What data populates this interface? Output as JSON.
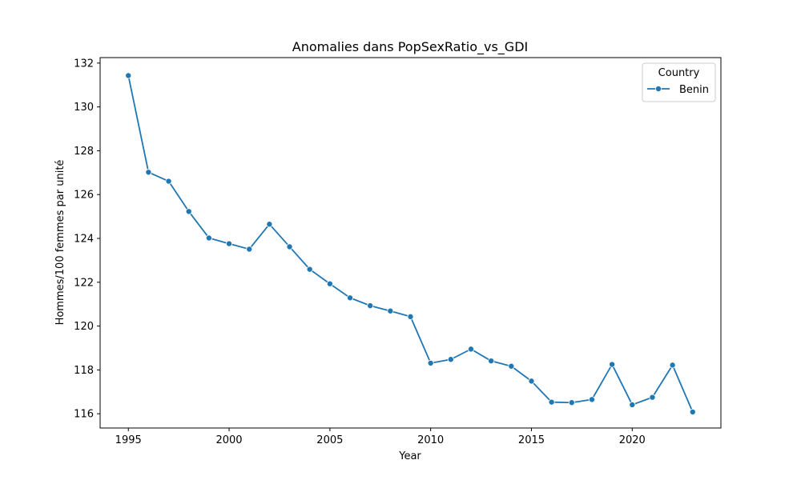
{
  "chart_data": {
    "type": "line",
    "title": "Anomalies dans PopSexRatio_vs_GDI",
    "xlabel": "Year",
    "ylabel": "Hommes/100 femmes par unité",
    "xlim": [
      1993.6,
      2024.4
    ],
    "ylim": [
      115.35,
      132.25
    ],
    "x_ticks": [
      1995,
      2000,
      2005,
      2010,
      2015,
      2020
    ],
    "y_ticks": [
      116,
      118,
      120,
      122,
      124,
      126,
      128,
      130,
      132
    ],
    "grid": false,
    "legend": {
      "title": "Country",
      "placement": "top-right"
    },
    "series": [
      {
        "name": "Benin",
        "color": "#1f77b4",
        "marker": "circle",
        "x": [
          1995,
          1996,
          1997,
          1998,
          1999,
          2000,
          2001,
          2002,
          2003,
          2004,
          2005,
          2006,
          2007,
          2008,
          2009,
          2010,
          2011,
          2012,
          2013,
          2014,
          2015,
          2016,
          2017,
          2018,
          2019,
          2020,
          2021,
          2022,
          2023
        ],
        "y": [
          131.43,
          127.02,
          126.61,
          125.23,
          124.02,
          123.76,
          123.51,
          124.65,
          123.62,
          122.59,
          121.93,
          121.29,
          120.93,
          120.69,
          120.43,
          118.31,
          118.48,
          118.95,
          118.41,
          118.17,
          117.49,
          116.53,
          116.51,
          116.65,
          118.25,
          116.41,
          116.75,
          118.22,
          116.08
        ]
      }
    ]
  }
}
